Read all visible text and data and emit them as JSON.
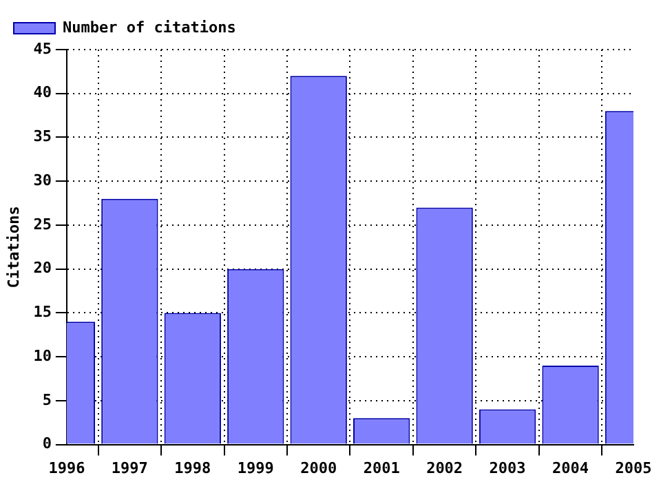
{
  "chart_data": {
    "type": "bar",
    "ylabel": "Citations",
    "x": [
      1996,
      1997,
      1998,
      1999,
      2000,
      2001,
      2002,
      2003,
      2004,
      2005
    ],
    "series": [
      {
        "name": "Number of citations",
        "color": "#8080ff",
        "values": [
          14,
          28,
          15,
          20,
          42,
          3,
          27,
          4,
          9,
          38
        ]
      }
    ],
    "xlim": [
      1996,
      2005
    ],
    "xticks": [
      1996,
      1997,
      1998,
      1999,
      2000,
      2001,
      2002,
      2003,
      2004,
      2005
    ],
    "ylim": [
      0,
      45
    ],
    "yticks": [
      0,
      5,
      10,
      15,
      20,
      25,
      30,
      35,
      40,
      45
    ],
    "grid": true,
    "legend": "top left"
  }
}
